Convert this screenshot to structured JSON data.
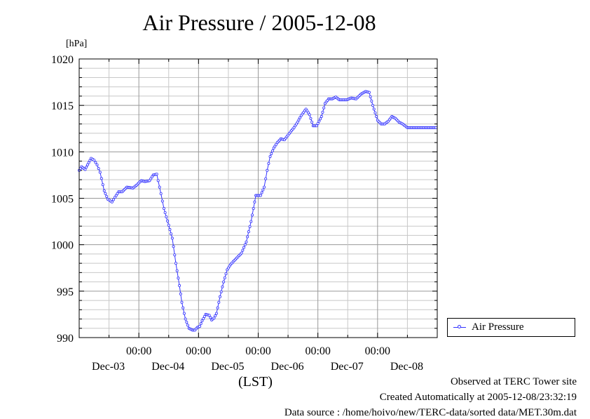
{
  "chart_data": {
    "type": "line",
    "title": "Air Pressure / 2005-12-08",
    "ylabel": "[hPa]",
    "xlabel": "(LST)",
    "ylim": [
      990,
      1020
    ],
    "y_ticks": [
      "990",
      "995",
      "1000",
      "1005",
      "1010",
      "1015",
      "1020"
    ],
    "x_time_labels": [
      "00:00",
      "00:00",
      "00:00",
      "00:00",
      "00:00"
    ],
    "x_date_labels": [
      "Dec-03",
      "Dec-04",
      "Dec-05",
      "Dec-06",
      "Dec-07",
      "Dec-08"
    ],
    "x_range_days": [
      "2005-12-03 00:00",
      "2005-12-09 00:00"
    ],
    "grid": true,
    "legend_position": "right-bottom, outside",
    "series": [
      {
        "name": "Air Pressure",
        "color": "#3333ff",
        "x_days": [
          0.0,
          0.04,
          0.1,
          0.14,
          0.2,
          0.25,
          0.3,
          0.35,
          0.42,
          0.48,
          0.55,
          0.6,
          0.66,
          0.72,
          0.8,
          0.9,
          0.96,
          1.04,
          1.1,
          1.18,
          1.24,
          1.3,
          1.37,
          1.42,
          1.5,
          1.56,
          1.62,
          1.68,
          1.72,
          1.78,
          1.84,
          1.9,
          1.94,
          1.98,
          2.02,
          2.06,
          2.12,
          2.18,
          2.22,
          2.26,
          2.3,
          2.36,
          2.42,
          2.48,
          2.54,
          2.6,
          2.66,
          2.72,
          2.8,
          2.88,
          2.96,
          3.04,
          3.1,
          3.15,
          3.2,
          3.26,
          3.32,
          3.38,
          3.44,
          3.5,
          3.56,
          3.6,
          3.66,
          3.72,
          3.8,
          3.86,
          3.92,
          3.98,
          4.06,
          4.12,
          4.18,
          4.24,
          4.3,
          4.36,
          4.42,
          4.48,
          4.56,
          4.64,
          4.72,
          4.8,
          4.86,
          4.92,
          5.0,
          5.06,
          5.12,
          5.18,
          5.24,
          5.3,
          5.36,
          5.42,
          5.5,
          5.58,
          5.66,
          5.72,
          5.8,
          5.86,
          5.92,
          5.98
        ],
        "values": [
          1008.0,
          1008.4,
          1008.1,
          1008.6,
          1009.3,
          1009.1,
          1008.6,
          1007.8,
          1005.8,
          1004.9,
          1004.6,
          1005.1,
          1005.7,
          1005.7,
          1006.2,
          1006.1,
          1006.4,
          1006.9,
          1006.8,
          1006.9,
          1007.5,
          1007.6,
          1005.5,
          1003.9,
          1002.1,
          1000.7,
          998.0,
          995.6,
          993.8,
          992.0,
          991.0,
          990.8,
          990.8,
          991.1,
          991.2,
          991.8,
          992.5,
          992.4,
          991.9,
          992.1,
          992.6,
          994.4,
          996.0,
          997.3,
          997.9,
          998.3,
          998.7,
          999.1,
          1000.3,
          1002.5,
          1005.3,
          1005.3,
          1006.2,
          1008.0,
          1009.5,
          1010.4,
          1011.0,
          1011.4,
          1011.3,
          1011.8,
          1012.3,
          1012.6,
          1013.2,
          1013.9,
          1014.6,
          1014.0,
          1012.8,
          1012.8,
          1013.8,
          1015.2,
          1015.7,
          1015.7,
          1015.9,
          1015.6,
          1015.6,
          1015.6,
          1015.8,
          1015.7,
          1016.2,
          1016.5,
          1016.4,
          1015.0,
          1013.4,
          1013.0,
          1013.0,
          1013.3,
          1013.8,
          1013.6,
          1013.2,
          1013.0,
          1012.6,
          1012.6,
          1012.6,
          1012.6,
          1012.6,
          1012.6,
          1012.6,
          1012.6
        ]
      }
    ]
  },
  "legend": {
    "label": "Air Pressure"
  },
  "footer": {
    "line1": "Observed at TERC Tower site",
    "line2": "Created Automatically at 2005-12-08/23:32:19",
    "line3": "Data source : /home/hoivo/new/TERC-data/sorted  data/MET.30m.dat"
  }
}
